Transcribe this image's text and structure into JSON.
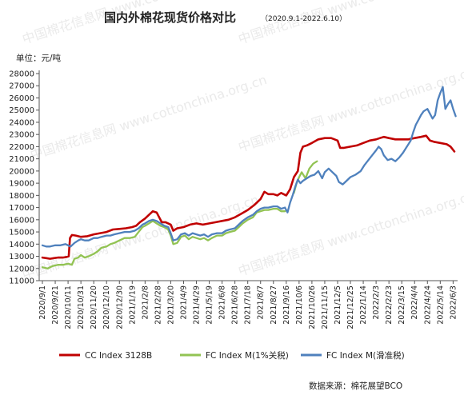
{
  "chart_data": {
    "type": "line",
    "title": "国内外棉花现货价格对比",
    "subtitle": "（2020.9.1-2022.6.10）",
    "ylabel": "单位：元/吨",
    "ylim": [
      11000,
      28000
    ],
    "yticks": [
      11000,
      12000,
      13000,
      14000,
      15000,
      16000,
      17000,
      18000,
      19000,
      20000,
      21000,
      22000,
      23000,
      24000,
      25000,
      26000,
      27000,
      28000
    ],
    "categories": [
      "2020/9/1",
      "2020/9/21",
      "2020/10/11",
      "2020/10/31",
      "2020/11/20",
      "2020/12/10",
      "2020/12/30",
      "2021/1/19",
      "2021/2/8",
      "2021/2/28",
      "2021/3/20",
      "2021/4/9",
      "2021/4/29",
      "2021/5/19",
      "2021/6/8",
      "2021/6/28",
      "2021/7/18",
      "2021/8/7",
      "2021/8/27",
      "2021/9/16",
      "2021/10/6",
      "2021/10/26",
      "2021/11/15",
      "2021/12/5",
      "2021/12/25",
      "2022/1/14",
      "2022/2/3",
      "2022/2/23",
      "2022/3/15",
      "2022/4/4",
      "2022/4/24",
      "2022/5/14",
      "2022/6/3"
    ],
    "grid": false,
    "legend_position": "bottom",
    "source": "数据来源：棉花展望BCO",
    "watermark": "中国棉花信息网 www.cottonchina.org.cn",
    "series": [
      {
        "name": "CC Index 3128B",
        "color": "#c00000",
        "points": [
          [
            0,
            12900
          ],
          [
            0.3,
            12850
          ],
          [
            0.6,
            12800
          ],
          [
            0.9,
            12850
          ],
          [
            1.2,
            12900
          ],
          [
            1.6,
            12900
          ],
          [
            1.9,
            12950
          ],
          [
            2.05,
            13000
          ],
          [
            2.15,
            14500
          ],
          [
            2.3,
            14750
          ],
          [
            2.6,
            14700
          ],
          [
            3.0,
            14600
          ],
          [
            3.5,
            14650
          ],
          [
            4.0,
            14800
          ],
          [
            4.5,
            14900
          ],
          [
            5.0,
            15000
          ],
          [
            5.5,
            15200
          ],
          [
            6.0,
            15250
          ],
          [
            6.5,
            15300
          ],
          [
            7.0,
            15400
          ],
          [
            7.3,
            15500
          ],
          [
            7.6,
            15800
          ],
          [
            8.0,
            16100
          ],
          [
            8.3,
            16400
          ],
          [
            8.6,
            16700
          ],
          [
            8.9,
            16600
          ],
          [
            9.1,
            16200
          ],
          [
            9.3,
            15800
          ],
          [
            9.6,
            15800
          ],
          [
            10.0,
            15600
          ],
          [
            10.2,
            15100
          ],
          [
            10.5,
            15300
          ],
          [
            11.0,
            15400
          ],
          [
            11.5,
            15600
          ],
          [
            12.0,
            15700
          ],
          [
            12.5,
            15600
          ],
          [
            13.0,
            15700
          ],
          [
            13.5,
            15800
          ],
          [
            14.0,
            15900
          ],
          [
            14.5,
            16000
          ],
          [
            15.0,
            16200
          ],
          [
            15.5,
            16500
          ],
          [
            16.0,
            16800
          ],
          [
            16.5,
            17200
          ],
          [
            17.0,
            17700
          ],
          [
            17.3,
            18300
          ],
          [
            17.6,
            18100
          ],
          [
            18.0,
            18100
          ],
          [
            18.3,
            18000
          ],
          [
            18.6,
            18200
          ],
          [
            19.0,
            18000
          ],
          [
            19.3,
            18500
          ],
          [
            19.6,
            19500
          ],
          [
            19.9,
            20000
          ],
          [
            20.1,
            21500
          ],
          [
            20.3,
            22000
          ],
          [
            20.6,
            22100
          ],
          [
            21.0,
            22300
          ],
          [
            21.5,
            22600
          ],
          [
            22.0,
            22700
          ],
          [
            22.5,
            22700
          ],
          [
            23.0,
            22500
          ],
          [
            23.2,
            21900
          ],
          [
            23.5,
            21900
          ],
          [
            24.0,
            22000
          ],
          [
            24.5,
            22100
          ],
          [
            25.0,
            22300
          ],
          [
            25.5,
            22500
          ],
          [
            26.0,
            22600
          ],
          [
            26.3,
            22700
          ],
          [
            26.6,
            22800
          ],
          [
            27.0,
            22700
          ],
          [
            27.5,
            22600
          ],
          [
            28.0,
            22600
          ],
          [
            28.5,
            22600
          ],
          [
            29.0,
            22700
          ],
          [
            29.5,
            22800
          ],
          [
            29.9,
            22900
          ],
          [
            30.2,
            22500
          ],
          [
            30.5,
            22400
          ],
          [
            31.0,
            22300
          ],
          [
            31.5,
            22200
          ],
          [
            31.8,
            22000
          ],
          [
            32.1,
            21600
          ]
        ]
      },
      {
        "name": "FC Index M(1%关税)",
        "color": "#92c353",
        "points": [
          [
            0,
            12100
          ],
          [
            0.4,
            12000
          ],
          [
            0.8,
            12200
          ],
          [
            1.2,
            12300
          ],
          [
            1.6,
            12300
          ],
          [
            2.0,
            12400
          ],
          [
            2.3,
            12300
          ],
          [
            2.5,
            12800
          ],
          [
            2.8,
            12900
          ],
          [
            3.0,
            13100
          ],
          [
            3.3,
            12900
          ],
          [
            3.6,
            13000
          ],
          [
            4.0,
            13200
          ],
          [
            4.3,
            13400
          ],
          [
            4.6,
            13700
          ],
          [
            5.0,
            13800
          ],
          [
            5.3,
            14000
          ],
          [
            5.6,
            14100
          ],
          [
            6.0,
            14300
          ],
          [
            6.4,
            14500
          ],
          [
            6.8,
            14500
          ],
          [
            7.2,
            14600
          ],
          [
            7.5,
            15000
          ],
          [
            7.8,
            15400
          ],
          [
            8.0,
            15500
          ],
          [
            8.3,
            15700
          ],
          [
            8.6,
            15900
          ],
          [
            8.9,
            15700
          ],
          [
            9.2,
            15500
          ],
          [
            9.5,
            15400
          ],
          [
            9.8,
            15200
          ],
          [
            10.0,
            14700
          ],
          [
            10.2,
            14000
          ],
          [
            10.5,
            14100
          ],
          [
            10.8,
            14600
          ],
          [
            11.1,
            14700
          ],
          [
            11.4,
            14400
          ],
          [
            11.7,
            14600
          ],
          [
            12.0,
            14500
          ],
          [
            12.3,
            14400
          ],
          [
            12.6,
            14500
          ],
          [
            12.9,
            14300
          ],
          [
            13.2,
            14500
          ],
          [
            13.6,
            14700
          ],
          [
            14.0,
            14700
          ],
          [
            14.3,
            14900
          ],
          [
            14.6,
            15000
          ],
          [
            15.0,
            15100
          ],
          [
            15.3,
            15400
          ],
          [
            15.6,
            15700
          ],
          [
            16.0,
            16000
          ],
          [
            16.4,
            16200
          ],
          [
            16.7,
            16600
          ],
          [
            17.0,
            16700
          ],
          [
            17.3,
            16800
          ],
          [
            17.6,
            16800
          ],
          [
            18.0,
            16900
          ],
          [
            18.3,
            16900
          ],
          [
            18.6,
            16700
          ],
          [
            18.9,
            16700
          ]
        ]
      },
      {
        "name": "FC Index M(1%关税)",
        "color": "#92c353",
        "points": [
          [
            19.6,
            18200
          ],
          [
            19.8,
            19000
          ],
          [
            20.0,
            19500
          ],
          [
            20.2,
            19900
          ],
          [
            20.5,
            19400
          ],
          [
            20.8,
            20200
          ],
          [
            21.1,
            20600
          ],
          [
            21.4,
            20800
          ]
        ]
      },
      {
        "name": "FC Index M(滑准税)",
        "color": "#4f81bd",
        "points": [
          [
            0,
            13900
          ],
          [
            0.3,
            13800
          ],
          [
            0.6,
            13800
          ],
          [
            1.0,
            13900
          ],
          [
            1.4,
            13900
          ],
          [
            1.8,
            14000
          ],
          [
            2.2,
            13800
          ],
          [
            2.5,
            14100
          ],
          [
            2.8,
            14300
          ],
          [
            3.0,
            14400
          ],
          [
            3.3,
            14300
          ],
          [
            3.6,
            14300
          ],
          [
            4.0,
            14500
          ],
          [
            4.3,
            14500
          ],
          [
            4.6,
            14600
          ],
          [
            5.0,
            14700
          ],
          [
            5.3,
            14700
          ],
          [
            5.6,
            14800
          ],
          [
            6.0,
            14900
          ],
          [
            6.4,
            15000
          ],
          [
            6.8,
            15000
          ],
          [
            7.2,
            15100
          ],
          [
            7.5,
            15300
          ],
          [
            7.8,
            15600
          ],
          [
            8.0,
            15700
          ],
          [
            8.3,
            15900
          ],
          [
            8.6,
            16000
          ],
          [
            8.9,
            15900
          ],
          [
            9.2,
            15700
          ],
          [
            9.5,
            15500
          ],
          [
            9.8,
            15400
          ],
          [
            10.0,
            14900
          ],
          [
            10.2,
            14300
          ],
          [
            10.5,
            14400
          ],
          [
            10.8,
            14800
          ],
          [
            11.1,
            14900
          ],
          [
            11.4,
            14700
          ],
          [
            11.7,
            14900
          ],
          [
            12.0,
            14800
          ],
          [
            12.3,
            14700
          ],
          [
            12.6,
            14800
          ],
          [
            12.9,
            14600
          ],
          [
            13.2,
            14800
          ],
          [
            13.6,
            14900
          ],
          [
            14.0,
            14900
          ],
          [
            14.3,
            15100
          ],
          [
            14.6,
            15200
          ],
          [
            15.0,
            15300
          ],
          [
            15.3,
            15600
          ],
          [
            15.6,
            15900
          ],
          [
            16.0,
            16200
          ],
          [
            16.4,
            16400
          ],
          [
            16.7,
            16700
          ],
          [
            17.0,
            16900
          ],
          [
            17.3,
            17000
          ],
          [
            17.6,
            17000
          ],
          [
            18.0,
            17100
          ],
          [
            18.3,
            17100
          ],
          [
            18.6,
            16900
          ],
          [
            18.9,
            17000
          ],
          [
            19.1,
            16600
          ],
          [
            19.3,
            17400
          ],
          [
            19.5,
            18000
          ],
          [
            19.7,
            18700
          ],
          [
            19.9,
            19300
          ],
          [
            20.1,
            19000
          ],
          [
            20.3,
            19200
          ],
          [
            20.6,
            19400
          ],
          [
            20.9,
            19600
          ],
          [
            21.2,
            19700
          ],
          [
            21.5,
            20000
          ],
          [
            21.8,
            19400
          ],
          [
            22.0,
            19900
          ],
          [
            22.3,
            20200
          ],
          [
            22.6,
            19900
          ],
          [
            22.9,
            19600
          ],
          [
            23.1,
            19100
          ],
          [
            23.4,
            18900
          ],
          [
            23.7,
            19200
          ],
          [
            24.0,
            19500
          ],
          [
            24.4,
            19700
          ],
          [
            24.8,
            20000
          ],
          [
            25.1,
            20500
          ],
          [
            25.4,
            20900
          ],
          [
            25.7,
            21300
          ],
          [
            26.0,
            21700
          ],
          [
            26.2,
            22000
          ],
          [
            26.4,
            21800
          ],
          [
            26.6,
            21300
          ],
          [
            26.9,
            20900
          ],
          [
            27.2,
            21000
          ],
          [
            27.5,
            20800
          ],
          [
            27.8,
            21100
          ],
          [
            28.1,
            21500
          ],
          [
            28.4,
            22000
          ],
          [
            28.7,
            22500
          ],
          [
            28.9,
            23200
          ],
          [
            29.1,
            23800
          ],
          [
            29.3,
            24200
          ],
          [
            29.5,
            24600
          ],
          [
            29.7,
            24900
          ],
          [
            30.0,
            25100
          ],
          [
            30.2,
            24700
          ],
          [
            30.4,
            24300
          ],
          [
            30.6,
            24600
          ],
          [
            30.8,
            25800
          ],
          [
            31.0,
            26400
          ],
          [
            31.2,
            26900
          ],
          [
            31.4,
            25100
          ],
          [
            31.6,
            25500
          ],
          [
            31.8,
            25800
          ],
          [
            32.0,
            25100
          ],
          [
            32.2,
            24500
          ]
        ]
      }
    ]
  }
}
